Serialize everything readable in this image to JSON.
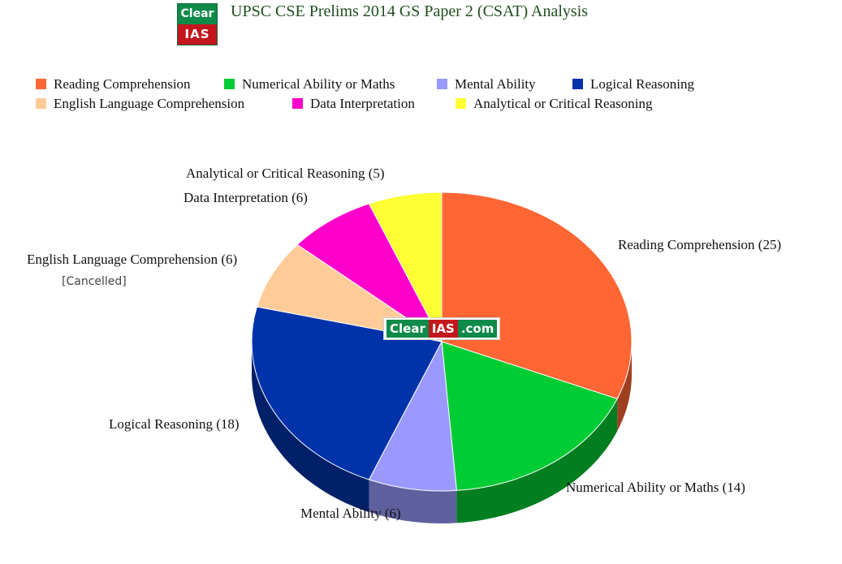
{
  "logo": {
    "top_text": "Clear",
    "bottom_text": "IAS"
  },
  "title": "UPSC CSE Prelims 2014 GS Paper 2 (CSAT) Analysis",
  "watermark": {
    "part1": "Clear",
    "part2": "IAS",
    "part3": ".com"
  },
  "chart_data": {
    "type": "pie",
    "title": "UPSC CSE Prelims 2014 GS Paper 2 (CSAT) Analysis",
    "legend_position": "top",
    "three_d": true,
    "start_angle_deg": 0,
    "direction": "clockwise",
    "categories": [
      "Reading Comprehension",
      "Numerical Ability or Maths",
      "Mental Ability",
      "Logical Reasoning",
      "English Language Comprehension",
      "Data Interpretation",
      "Analytical or Critical Reasoning"
    ],
    "values": [
      25,
      14,
      6,
      18,
      6,
      6,
      5
    ],
    "colors": [
      "#ff6633",
      "#00cc33",
      "#9999ff",
      "#0033aa",
      "#ffcc99",
      "#ff00cc",
      "#ffff33"
    ],
    "data_labels": [
      "Reading  Comprehension (25)",
      "Numerical Ability or Maths (14)",
      "Mental Ability (6)",
      "Logical Reasoning  (18)",
      "English Language Comprehension (6)",
      "Data Interpretation (6)",
      "Analytical or Critical Reasoning (5)"
    ],
    "annotations": [
      "[Cancelled]"
    ]
  }
}
